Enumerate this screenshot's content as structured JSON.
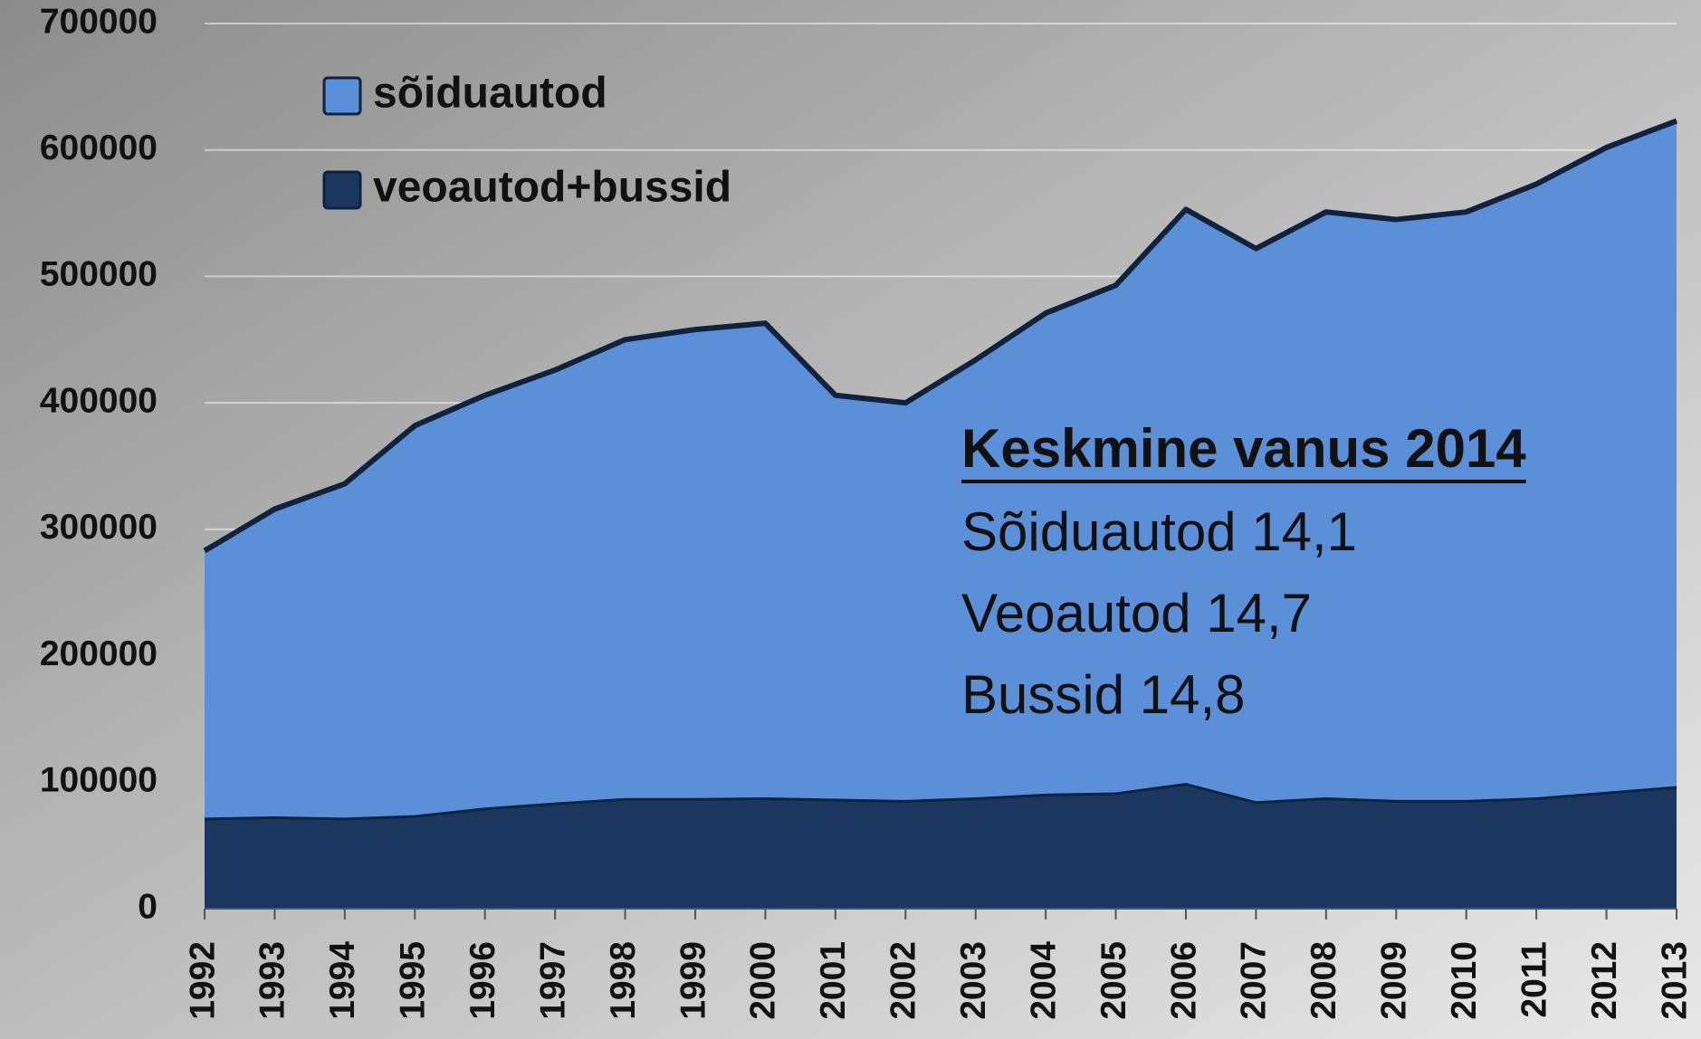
{
  "chart_data": {
    "type": "stacked_area",
    "categories": [
      "1992",
      "1993",
      "1994",
      "1995",
      "1996",
      "1997",
      "1998",
      "1999",
      "2000",
      "2001",
      "2002",
      "2003",
      "2004",
      "2005",
      "2006",
      "2007",
      "2008",
      "2009",
      "2010",
      "2011",
      "2012",
      "2013"
    ],
    "series": [
      {
        "name": "sõiduautod",
        "color": "#5b8fd8",
        "values": [
          211000,
          243000,
          264000,
          308000,
          326000,
          342000,
          362500,
          370500,
          375000,
          319000,
          314000,
          346000,
          380000,
          401000,
          453500,
          437000,
          463000,
          459000,
          465000,
          485000,
          509500,
          526000
        ]
      },
      {
        "name": "veoautod+bussid",
        "color": "#1b365f",
        "values": [
          72000,
          73000,
          72000,
          74000,
          80000,
          84000,
          87500,
          87500,
          88000,
          87000,
          86000,
          88000,
          91000,
          92000,
          99500,
          85000,
          88000,
          86000,
          86000,
          88000,
          92500,
          97000
        ]
      }
    ],
    "ylim": [
      0,
      700000
    ],
    "yticks": [
      0,
      100000,
      200000,
      300000,
      400000,
      500000,
      600000,
      700000
    ],
    "grid": true,
    "annotation": {
      "title": "Keskmine vanus 2014",
      "lines": [
        "Sõiduautod 14,1",
        "Veoautod 14,7",
        "Bussid 14,8"
      ]
    }
  }
}
